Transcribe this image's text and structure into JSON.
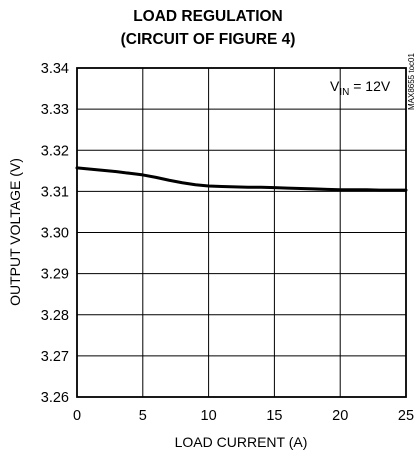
{
  "chart_data": {
    "type": "line",
    "title_line1": "LOAD REGULATION",
    "title_line2": "(CIRCUIT OF FIGURE 4)",
    "xlabel": "LOAD CURRENT (A)",
    "ylabel": "OUTPUT VOLTAGE (V)",
    "xlim": [
      0,
      25
    ],
    "ylim": [
      3.26,
      3.34
    ],
    "x_ticks": [
      "0",
      "5",
      "10",
      "15",
      "20",
      "25"
    ],
    "y_ticks": [
      "3.34",
      "3.33",
      "3.32",
      "3.31",
      "3.30",
      "3.29",
      "3.28",
      "3.27",
      "3.26"
    ],
    "grid": true,
    "annotation": {
      "prefix": "V",
      "subscript": "IN",
      "suffix": " = 12V"
    },
    "figure_id": "MAX8655 toc01",
    "series": [
      {
        "x": [
          0,
          1,
          2,
          3,
          4,
          5,
          6,
          7,
          8,
          9,
          10,
          11,
          12,
          13,
          14,
          15,
          16,
          17,
          18,
          19,
          20,
          21,
          22,
          23,
          24,
          25
        ],
        "y": [
          3.3157,
          3.3154,
          3.3151,
          3.3148,
          3.3144,
          3.314,
          3.3134,
          3.3127,
          3.3121,
          3.3116,
          3.3113,
          3.3112,
          3.3111,
          3.311,
          3.311,
          3.3109,
          3.3108,
          3.3107,
          3.3106,
          3.3105,
          3.3104,
          3.3104,
          3.3104,
          3.3103,
          3.3103,
          3.3103
        ]
      }
    ]
  }
}
